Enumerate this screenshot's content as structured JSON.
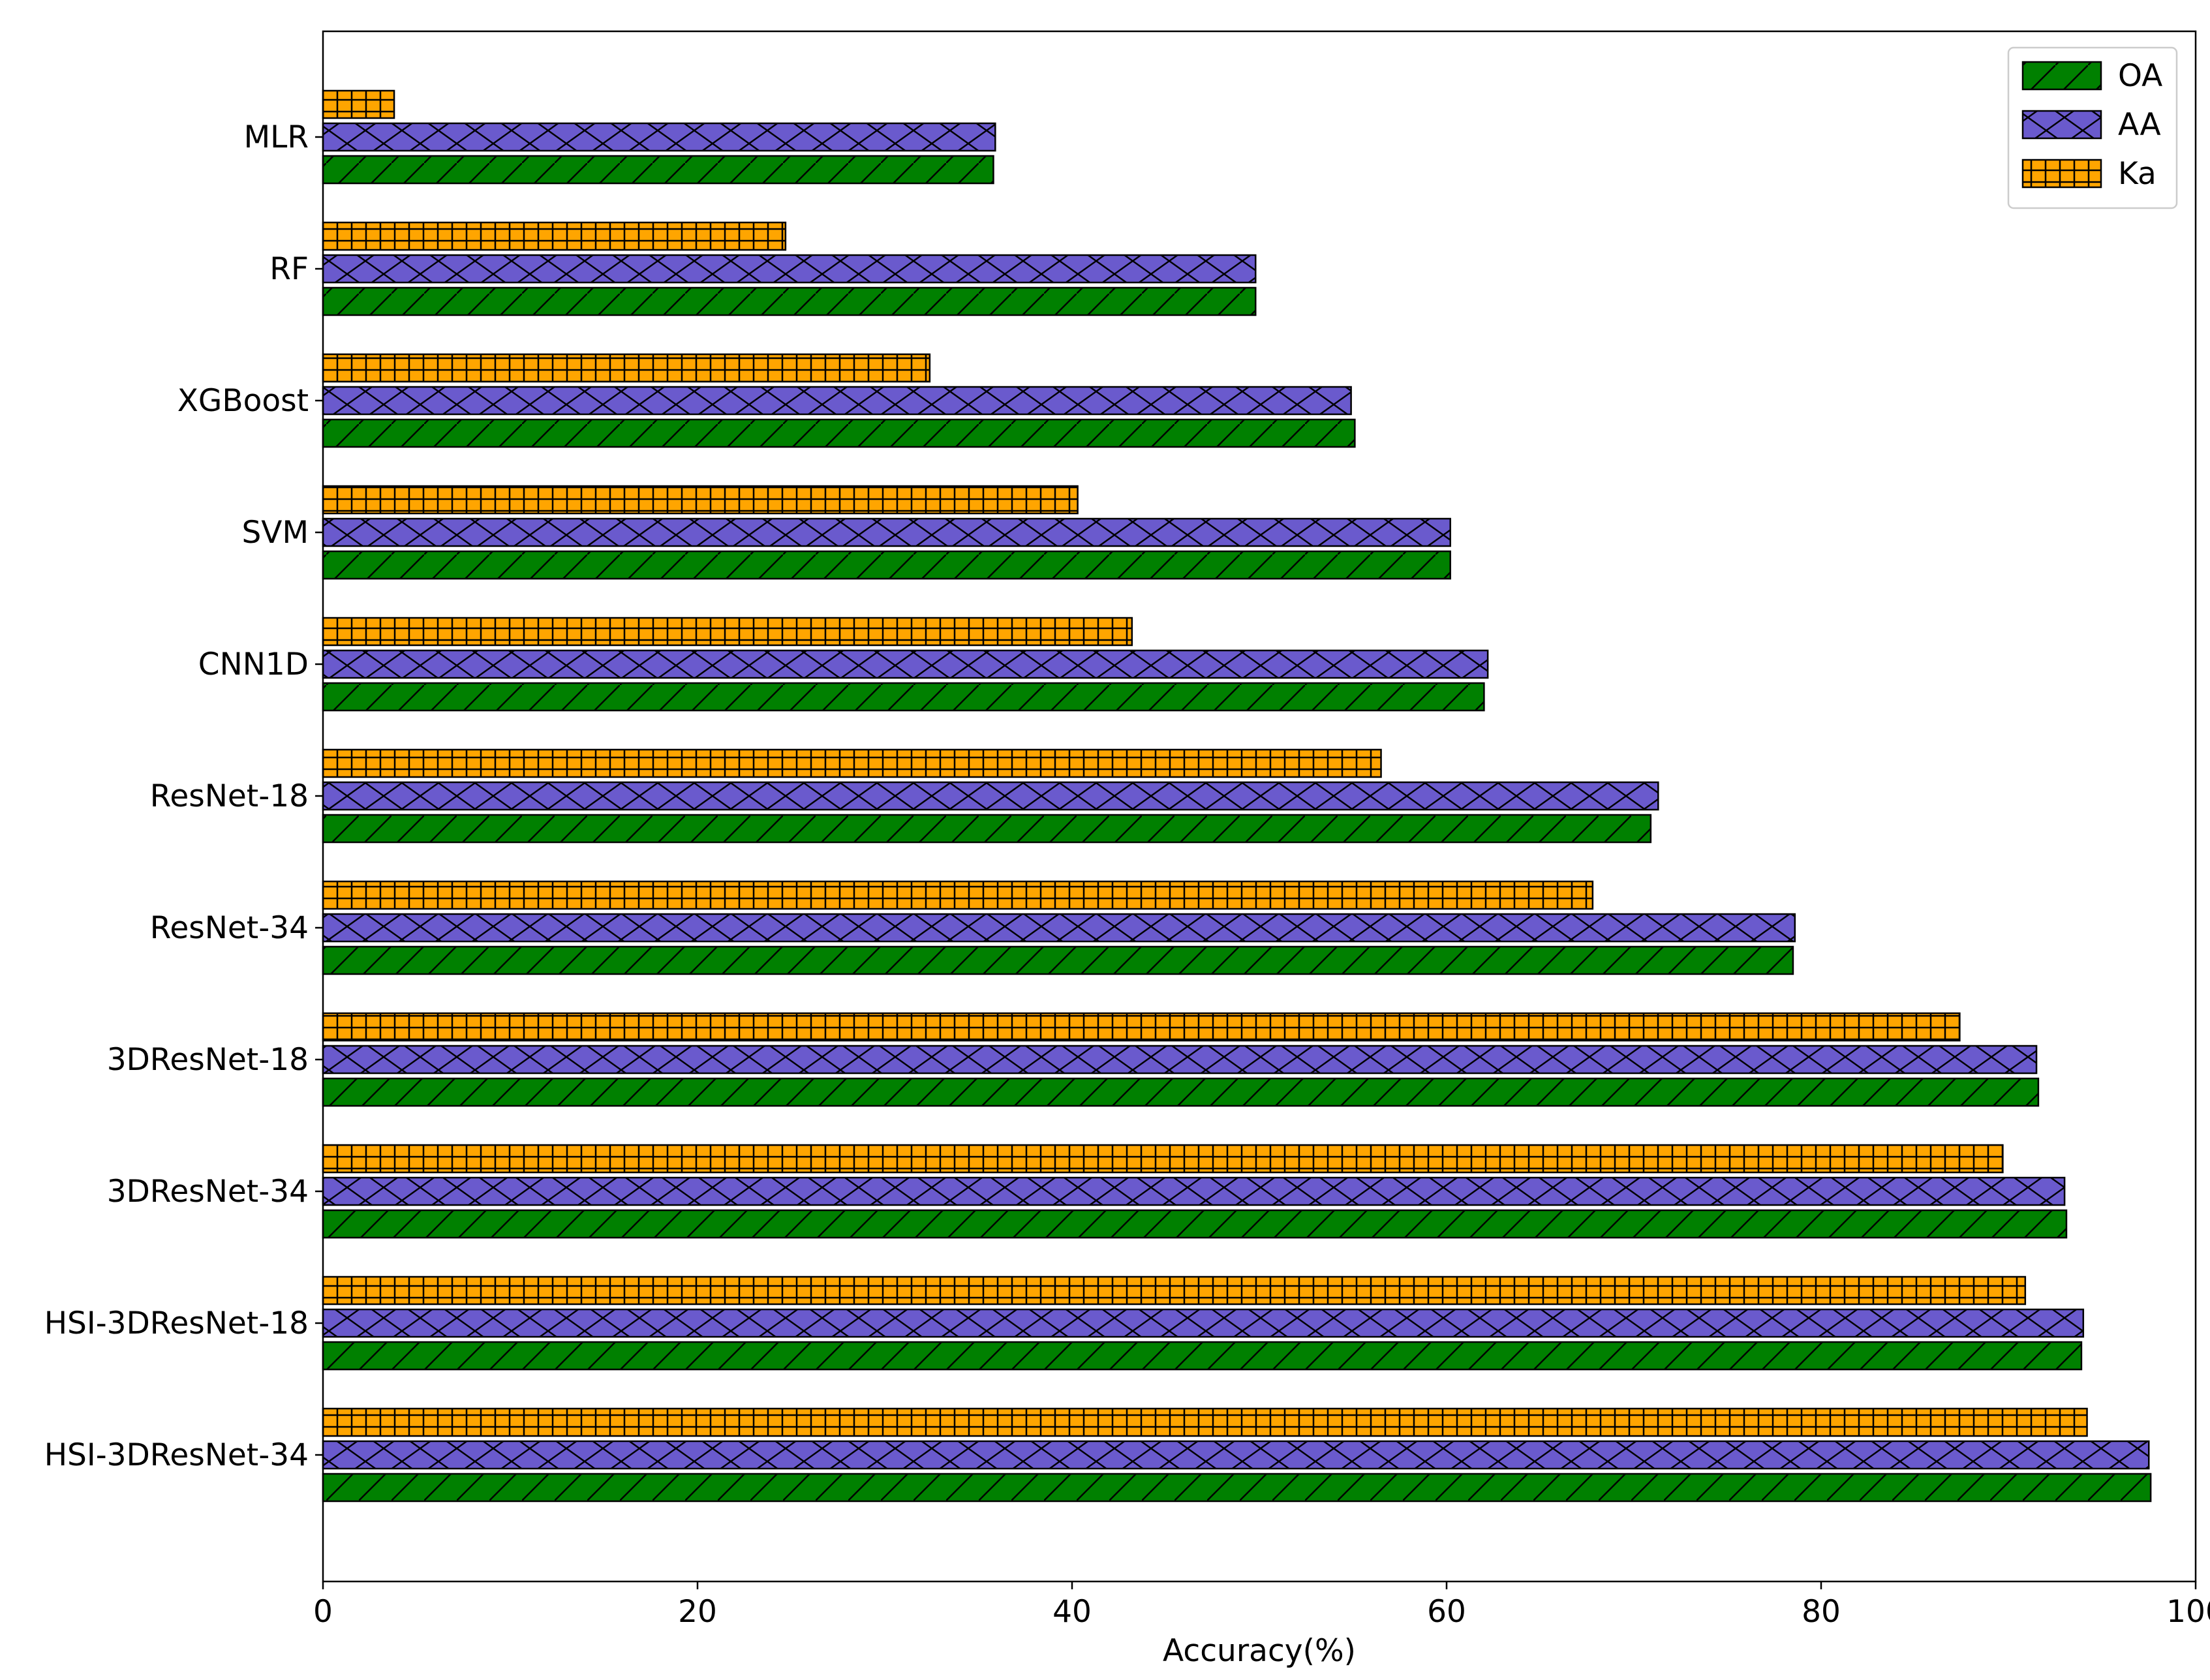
{
  "chart_data": {
    "type": "bar",
    "orientation": "horizontal",
    "title": "",
    "xlabel": "Accuracy(%)",
    "ylabel": "",
    "xlim": [
      0,
      100
    ],
    "x_ticks": [
      0,
      20,
      40,
      60,
      80,
      100
    ],
    "grid": false,
    "legend_position": "top-right",
    "categories": [
      "MLR",
      "RF",
      "XGBoost",
      "SVM",
      "CNN1D",
      "ResNet-18",
      "ResNet-34",
      "3DResNet-18",
      "3DResNet-34",
      "HSI-3DResNet-18",
      "HSI-3DResNet-34"
    ],
    "series": [
      {
        "name": "OA",
        "color": "#008000",
        "hatch": "diagonal",
        "values": [
          35.8,
          49.8,
          55.1,
          60.2,
          62.0,
          70.9,
          78.5,
          91.6,
          93.1,
          93.9,
          97.6
        ]
      },
      {
        "name": "AA",
        "color": "#6a5acd",
        "hatch": "cross",
        "values": [
          35.9,
          49.8,
          54.9,
          60.2,
          62.2,
          71.3,
          78.6,
          91.5,
          93.0,
          94.0,
          97.5
        ]
      },
      {
        "name": "Ka",
        "color": "#ffa500",
        "hatch": "grid",
        "values": [
          3.8,
          24.7,
          32.4,
          40.3,
          43.2,
          56.5,
          67.8,
          87.4,
          89.7,
          90.9,
          94.2
        ]
      }
    ]
  }
}
